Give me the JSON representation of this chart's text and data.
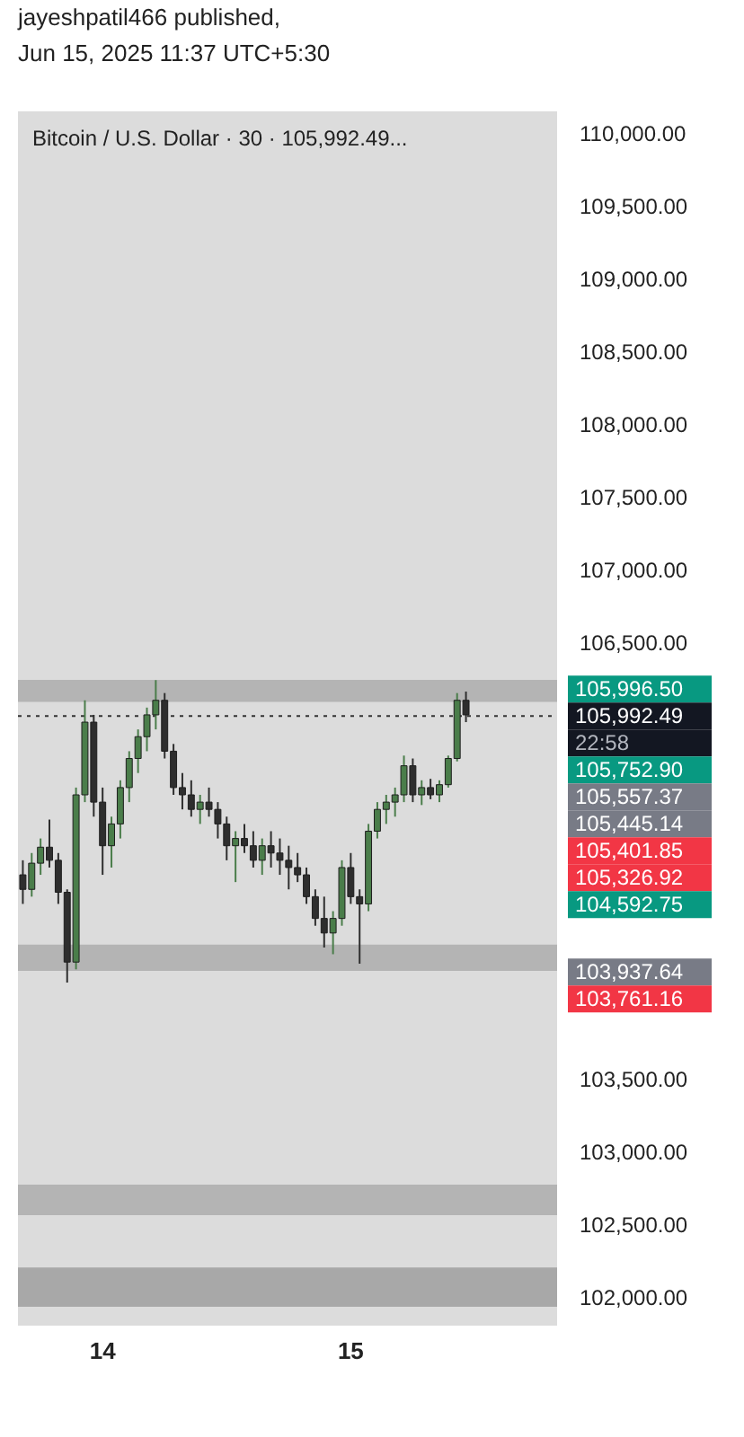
{
  "chart_data": {
    "type": "candlestick",
    "title": "Bitcoin / U.S. Dollar · 30 · 105,992.49...",
    "categories": [
      null,
      null,
      null,
      null,
      null,
      null,
      null,
      null,
      null,
      "14",
      null,
      null,
      null,
      null,
      null,
      null,
      null,
      null,
      null,
      null,
      null,
      null,
      null,
      null,
      null,
      null,
      null,
      null,
      null,
      null,
      null,
      null,
      null,
      null,
      null,
      null,
      null,
      "15",
      null,
      null,
      null,
      null,
      null,
      null,
      null,
      null,
      null,
      null,
      null,
      null,
      null
    ],
    "ohlc": [
      [
        104900,
        105000,
        104700,
        104800
      ],
      [
        104800,
        105050,
        104750,
        104980
      ],
      [
        104980,
        105150,
        104900,
        105090
      ],
      [
        105090,
        105280,
        104950,
        105000
      ],
      [
        105000,
        105050,
        104700,
        104780
      ],
      [
        104780,
        104800,
        104159,
        104300
      ],
      [
        104300,
        105500,
        104250,
        105450
      ],
      [
        105450,
        106100,
        105400,
        105950
      ],
      [
        105950,
        106000,
        105300,
        105400
      ],
      [
        105400,
        105500,
        104900,
        105100
      ],
      [
        105100,
        105300,
        104950,
        105250
      ],
      [
        105250,
        105550,
        105150,
        105500
      ],
      [
        105500,
        105750,
        105400,
        105700
      ],
      [
        105700,
        105900,
        105600,
        105850
      ],
      [
        105850,
        106050,
        105750,
        106000
      ],
      [
        106000,
        106239,
        105900,
        106100
      ],
      [
        106100,
        106150,
        105700,
        105750
      ],
      [
        105750,
        105800,
        105450,
        105500
      ],
      [
        105500,
        105600,
        105350,
        105450
      ],
      [
        105450,
        105550,
        105300,
        105350
      ],
      [
        105350,
        105450,
        105250,
        105400
      ],
      [
        105400,
        105500,
        105300,
        105350
      ],
      [
        105350,
        105400,
        105150,
        105250
      ],
      [
        105250,
        105300,
        105000,
        105100
      ],
      [
        105100,
        105200,
        104850,
        105150
      ],
      [
        105150,
        105250,
        105050,
        105100
      ],
      [
        105100,
        105200,
        104950,
        105000
      ],
      [
        105000,
        105150,
        104900,
        105100
      ],
      [
        105100,
        105200,
        104950,
        105050
      ],
      [
        105050,
        105150,
        104900,
        105000
      ],
      [
        105000,
        105100,
        104800,
        104950
      ],
      [
        104950,
        105050,
        104850,
        104900
      ],
      [
        104900,
        104950,
        104700,
        104750
      ],
      [
        104750,
        104800,
        104550,
        104600
      ],
      [
        104600,
        104750,
        104400,
        104500
      ],
      [
        104500,
        104650,
        104354,
        104600
      ],
      [
        104600,
        105000,
        104550,
        104950
      ],
      [
        104950,
        105050,
        104700,
        104750
      ],
      [
        104750,
        104800,
        104289,
        104700
      ],
      [
        104700,
        105250,
        104650,
        105200
      ],
      [
        105200,
        105400,
        105150,
        105350
      ],
      [
        105350,
        105450,
        105250,
        105400
      ],
      [
        105400,
        105500,
        105300,
        105450
      ],
      [
        105450,
        105720,
        105400,
        105650
      ],
      [
        105650,
        105700,
        105400,
        105450
      ],
      [
        105450,
        105550,
        105380,
        105500
      ],
      [
        105500,
        105560,
        105420,
        105450
      ],
      [
        105450,
        105550,
        105400,
        105520
      ],
      [
        105520,
        105720,
        105500,
        105700
      ],
      [
        105700,
        106150,
        105680,
        106100
      ],
      [
        106100,
        106160,
        105950,
        106000
      ]
    ],
    "ylim": [
      101800,
      110150
    ],
    "yticks": [
      {
        "value": 102000,
        "label": "102,000.00"
      },
      {
        "value": 102500,
        "label": "102,500.00"
      },
      {
        "value": 103000,
        "label": "103,000.00"
      },
      {
        "value": 103500,
        "label": "103,500.00"
      },
      {
        "value": 106500,
        "label": "106,500.00"
      },
      {
        "value": 107000,
        "label": "107,000.00"
      },
      {
        "value": 107500,
        "label": "107,500.00"
      },
      {
        "value": 108000,
        "label": "108,000.00"
      },
      {
        "value": 108500,
        "label": "108,500.00"
      },
      {
        "value": 109000,
        "label": "109,000.00"
      },
      {
        "value": 109500,
        "label": "109,500.00"
      },
      {
        "value": 110000,
        "label": "110,000.00"
      }
    ],
    "bands": [
      {
        "axis": "y",
        "from": 106090,
        "to": 106240,
        "color": "#b4b4b4"
      },
      {
        "axis": "y",
        "from": 104240,
        "to": 104420,
        "color": "#b4b4b4"
      },
      {
        "axis": "y",
        "from": 102560,
        "to": 102770,
        "color": "#b4b4b4"
      },
      {
        "axis": "y",
        "from": 101930,
        "to": 102200,
        "color": "#a8a8a8"
      }
    ],
    "ref_lines": [
      {
        "axis": "y",
        "value": 105992.49,
        "color": "#333333",
        "line_style": "dotted"
      }
    ],
    "annotations": [
      "jayeshpatil466 published,",
      "Jun 15, 2025 11:37 UTC+5:30",
      "105,996.50",
      "105,992.49",
      "22:58",
      "105,752.90",
      "105,557.37",
      "105,445.14",
      "105,401.85",
      "105,326.92",
      "104,592.75",
      "103,937.64",
      "103,761.16"
    ],
    "grid": false
  }
}
